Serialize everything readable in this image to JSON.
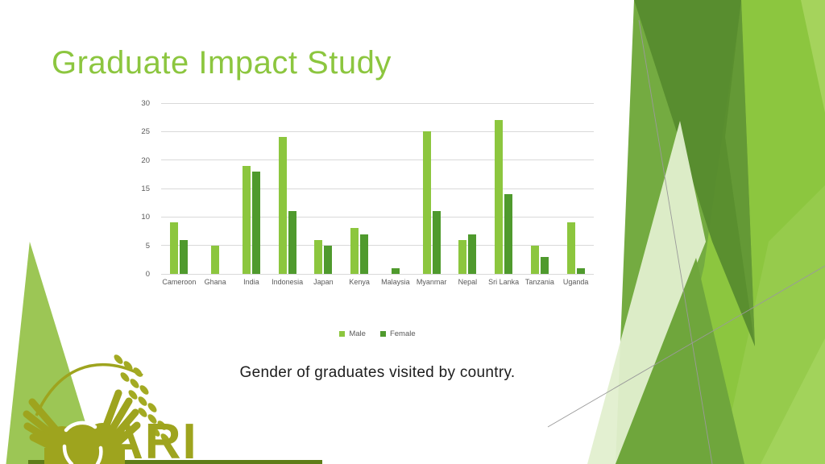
{
  "slide": {
    "title": "Graduate Impact Study",
    "caption": "Gender of graduates visited by country."
  },
  "logo": {
    "text": "ARI"
  },
  "chart_data": {
    "type": "bar",
    "categories": [
      "Cameroon",
      "Ghana",
      "India",
      "Indonesia",
      "Japan",
      "Kenya",
      "Malaysia",
      "Myanmar",
      "Nepal",
      "Sri Lanka",
      "Tanzania",
      "Uganda"
    ],
    "series": [
      {
        "name": "Male",
        "color": "#8CC63E",
        "values": [
          9,
          5,
          19,
          24,
          6,
          8,
          0,
          25,
          6,
          27,
          5,
          9
        ]
      },
      {
        "name": "Female",
        "color": "#4F9A2D",
        "values": [
          6,
          0,
          18,
          11,
          5,
          7,
          1,
          11,
          7,
          14,
          3,
          1
        ]
      }
    ],
    "title": "",
    "xlabel": "",
    "ylabel": "",
    "ylim": [
      0,
      30
    ],
    "yticks": [
      0,
      5,
      10,
      15,
      20,
      25,
      30
    ],
    "grid": true,
    "legend_position": "bottom"
  },
  "colors": {
    "title_green": "#8CC63F",
    "male": "#8CC63E",
    "female": "#4F9A2D",
    "gridline": "#D9D9D9",
    "axis_text": "#595959",
    "logo_olive": "#9EA41E",
    "caption_text": "#1C1C1C",
    "deco_bright": "#8CC63F",
    "deco_mid": "#74AB41",
    "deco_dark": "#568A2E",
    "deco_pale": "#E2EFCF"
  }
}
